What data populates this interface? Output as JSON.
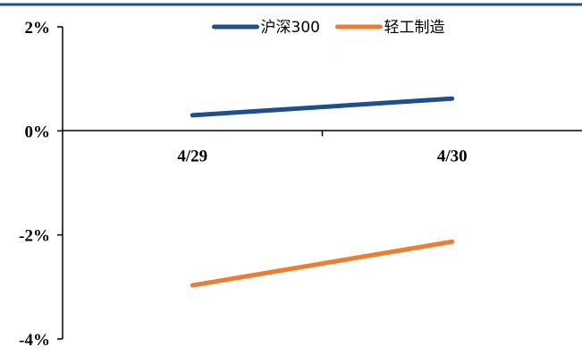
{
  "chart_data": {
    "type": "line",
    "categories": [
      "4/29",
      "4/30"
    ],
    "series": [
      {
        "name": "沪深300",
        "color": "#1f4e8c",
        "values": [
          0.3,
          0.62
        ]
      },
      {
        "name": "轻工制造",
        "color": "#ed7d31",
        "values": [
          -2.97,
          -2.13
        ]
      }
    ],
    "ylim": [
      -4,
      2
    ],
    "yticks": [
      2,
      0,
      -2,
      -4
    ],
    "ytick_labels": [
      "2%",
      "0%",
      "-2%",
      "-4%"
    ],
    "legend_position": "top-center",
    "grid": false,
    "title": "",
    "xlabel": "",
    "ylabel": "",
    "header_rule_color": "#1f4e8c"
  }
}
